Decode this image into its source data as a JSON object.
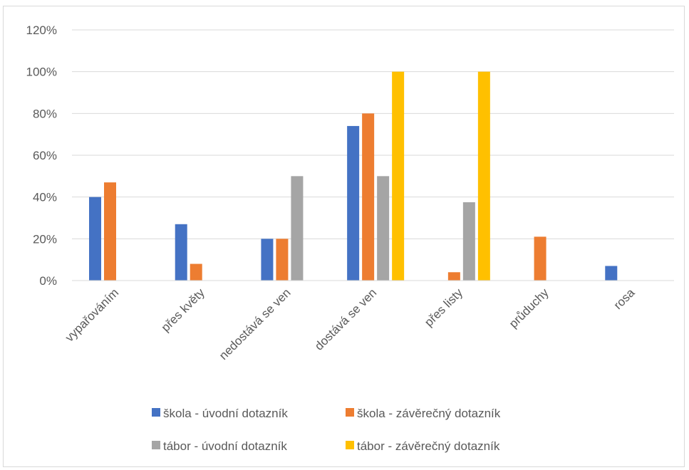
{
  "chart_data": {
    "type": "bar",
    "categories": [
      "vypařováním",
      "přes květy",
      "nedostává se ven",
      "dostává se ven",
      "přes listy",
      "průduchy",
      "rosa"
    ],
    "series": [
      {
        "name": "škola - úvodní dotazník",
        "color": "#4472C4",
        "values": [
          40,
          27,
          20,
          74,
          0,
          0,
          7
        ]
      },
      {
        "name": "škola - závěrečný dotazník",
        "color": "#ED7D31",
        "values": [
          47,
          8,
          20,
          80,
          4,
          21,
          0
        ]
      },
      {
        "name": "tábor - úvodní dotazník",
        "color": "#A5A5A5",
        "values": [
          0,
          0,
          50,
          50,
          37.5,
          0,
          0
        ]
      },
      {
        "name": "tábor - závěrečný dotazník",
        "color": "#FFC000",
        "values": [
          0,
          0,
          0,
          100,
          100,
          0,
          0
        ]
      }
    ],
    "ylim": [
      0,
      120
    ],
    "yticks": [
      "0%",
      "20%",
      "40%",
      "60%",
      "80%",
      "100%",
      "120%"
    ],
    "title": "",
    "xlabel": "",
    "ylabel": "",
    "grid": true,
    "legend_position": "bottom"
  }
}
